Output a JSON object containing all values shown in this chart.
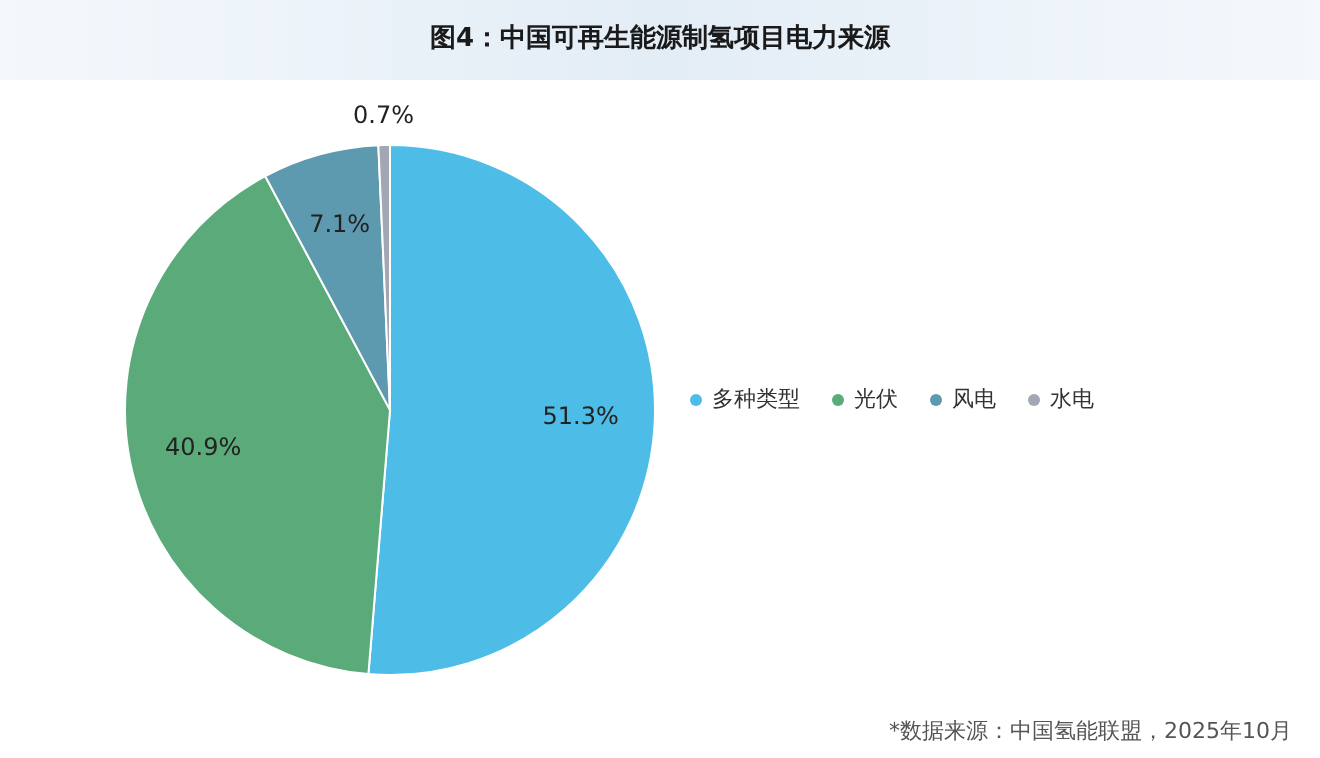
{
  "chart_data": {
    "type": "pie",
    "title": "图4：中国可再生能源制氢项目电力来源",
    "categories": [
      "多种类型",
      "光伏",
      "风电",
      "水电"
    ],
    "values": [
      51.3,
      40.9,
      7.1,
      0.7
    ],
    "value_labels": [
      "51.3%",
      "40.9%",
      "7.1%",
      "0.7%"
    ],
    "colors": [
      "#4dbde8",
      "#5aaa7a",
      "#5e9aaf",
      "#a3a7b3"
    ],
    "legend": "right",
    "annotations": [
      "*数据来源：中国氢能联盟，2025年10月"
    ]
  }
}
